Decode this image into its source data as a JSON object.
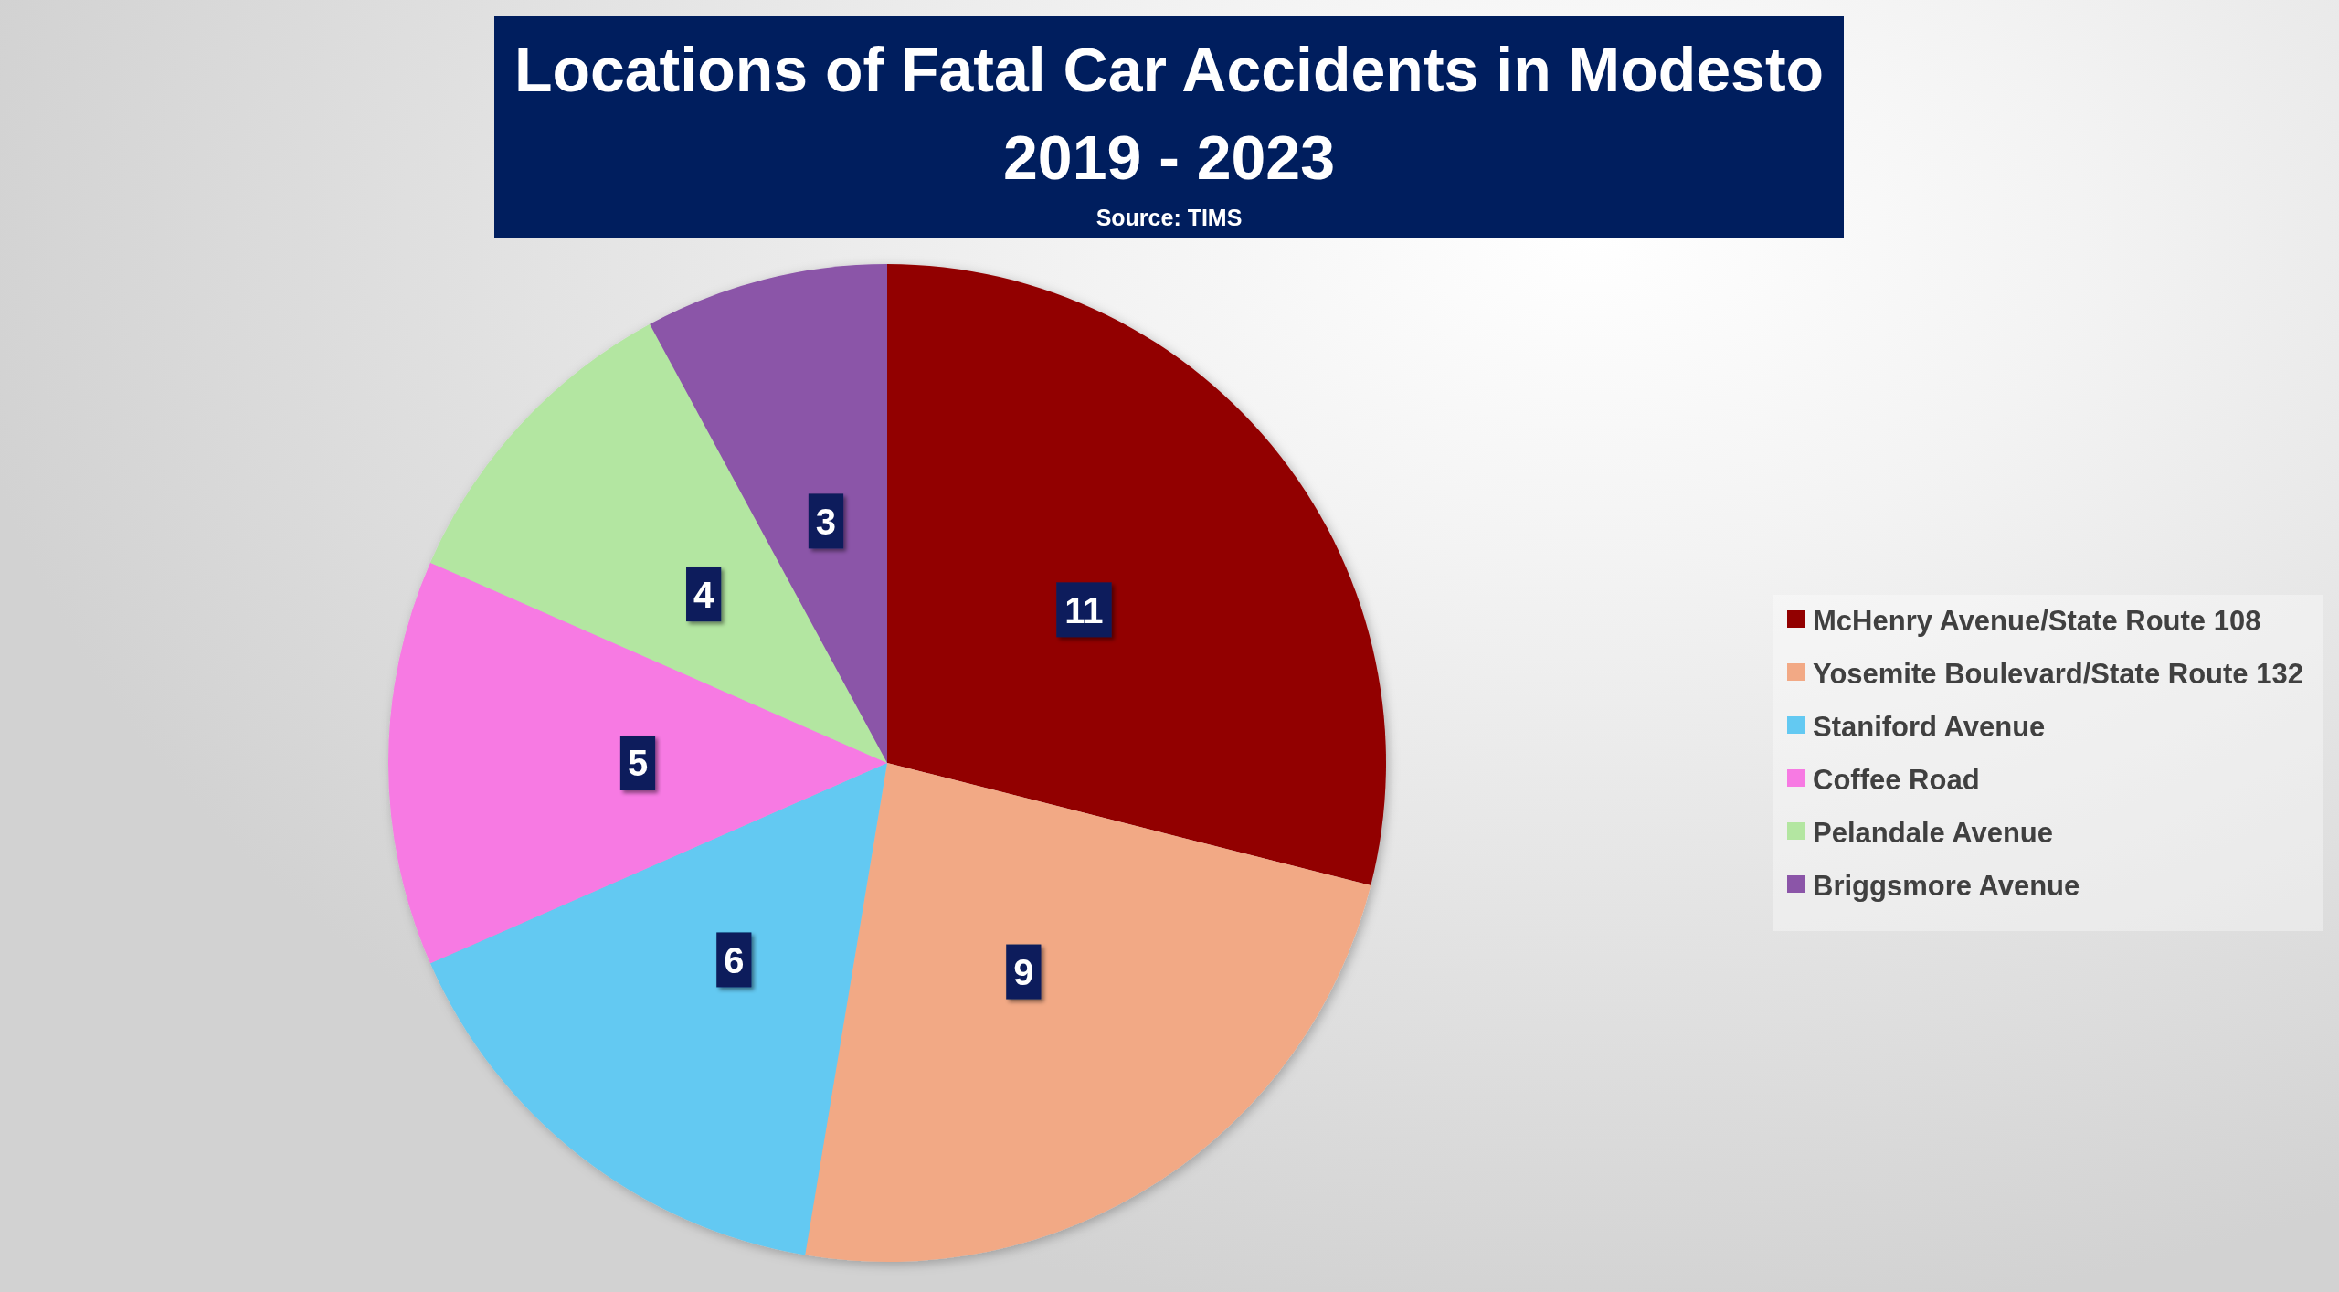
{
  "chart_data": {
    "type": "pie",
    "title": "Locations of Fatal Car Accidents in Modesto\n2019 - 2023",
    "annotations": [
      "Source: TIMS"
    ],
    "categories": [
      "McHenry Avenue/State Route 108",
      "Yosemite Boulevard/State Route 132",
      "Staniford Avenue",
      "Coffee Road",
      "Pelandale Avenue",
      "Briggsmore Avenue"
    ],
    "values": [
      11,
      9,
      6,
      5,
      4,
      3
    ],
    "colors": [
      "#920000",
      "#f2a985",
      "#63c9f2",
      "#f77ae3",
      "#b3e6a1",
      "#8b55a8"
    ],
    "data_labels": true,
    "legend": "right"
  }
}
